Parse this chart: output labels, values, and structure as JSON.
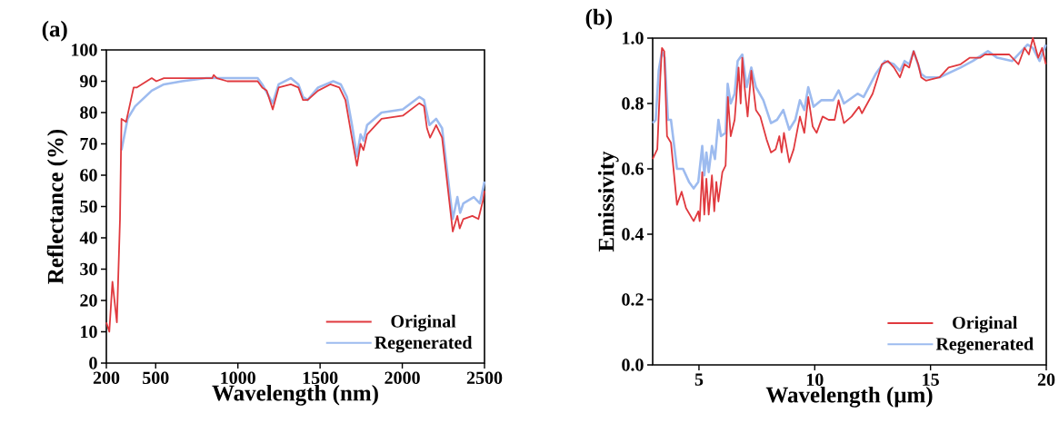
{
  "chart_data": [
    {
      "type": "line",
      "title": "(a)",
      "xlabel": "Wavelength (nm)",
      "ylabel": "Reflectance (%)",
      "xlim": [
        200,
        2500
      ],
      "ylim": [
        0,
        100
      ],
      "xticks": [
        200,
        500,
        1000,
        1500,
        2000,
        2500
      ],
      "yticks": [
        0,
        10,
        20,
        30,
        40,
        50,
        60,
        70,
        80,
        90,
        100
      ],
      "grid": false,
      "legend": "bottom right",
      "marker": "none",
      "line_style": "solid",
      "series": [
        {
          "name": "Original",
          "color": "#e0393e",
          "x": [
            200,
            218,
            237,
            264,
            283,
            292,
            320,
            366,
            384,
            476,
            504,
            550,
            660,
            844,
            853,
            872,
            936,
            973,
            1120,
            1148,
            1175,
            1212,
            1248,
            1322,
            1368,
            1396,
            1424,
            1488,
            1562,
            1617,
            1654,
            1690,
            1724,
            1746,
            1764,
            1786,
            1874,
            2003,
            2104,
            2132,
            2150,
            2169,
            2206,
            2242,
            2307,
            2335,
            2349,
            2371,
            2426,
            2463,
            2491,
            2500
          ],
          "values": [
            13,
            10,
            26,
            13,
            46,
            78,
            77,
            88,
            88,
            91,
            90,
            91,
            91,
            91,
            92,
            91,
            90,
            90,
            90,
            88,
            87,
            81,
            88,
            89,
            88,
            84,
            84,
            87,
            89,
            88,
            84,
            73,
            63,
            70,
            68,
            73,
            78,
            79,
            83,
            82,
            75,
            72,
            76,
            72,
            42,
            47,
            43,
            46,
            47,
            46,
            52,
            55
          ]
        },
        {
          "name": "Regenerated",
          "color": "#9dbbef",
          "x": [
            292,
            329,
            375,
            476,
            550,
            660,
            807,
            936,
            1120,
            1148,
            1212,
            1248,
            1322,
            1368,
            1396,
            1424,
            1488,
            1580,
            1626,
            1663,
            1694,
            1724,
            1746,
            1764,
            1786,
            1874,
            2003,
            2104,
            2132,
            2165,
            2206,
            2242,
            2307,
            2335,
            2352,
            2371,
            2435,
            2472,
            2500
          ],
          "values": [
            68,
            78,
            82,
            87,
            89,
            90,
            91,
            91,
            91,
            89,
            83,
            89,
            91,
            89,
            85,
            84,
            88,
            90,
            89,
            85,
            76,
            66,
            73,
            71,
            76,
            80,
            81,
            85,
            84,
            76,
            78,
            75,
            46,
            53,
            48,
            51,
            53,
            51,
            58
          ]
        }
      ]
    },
    {
      "type": "line",
      "title": "(b)",
      "xlabel": "Wavelength (μm)",
      "ylabel": "Emissivity",
      "xlim": [
        3,
        20
      ],
      "ylim": [
        0,
        1
      ],
      "xticks": [
        5,
        10,
        15,
        20
      ],
      "yticks": [
        {
          "value": 0,
          "label": "0.0"
        },
        0.2,
        0.4,
        0.6,
        0.8,
        {
          "value": 1,
          "label": "1.0"
        }
      ],
      "grid": false,
      "legend": "bottom right",
      "marker": "none",
      "line_style": "solid",
      "series": [
        {
          "name": "Original",
          "color": "#e0393e",
          "x": [
            3.0,
            3.2,
            3.33,
            3.4,
            3.5,
            3.62,
            3.79,
            4.05,
            4.25,
            4.44,
            4.77,
            4.97,
            5.03,
            5.14,
            5.23,
            5.32,
            5.42,
            5.56,
            5.66,
            5.75,
            5.84,
            6.01,
            6.15,
            6.25,
            6.37,
            6.54,
            6.71,
            6.8,
            6.87,
            6.97,
            7.1,
            7.26,
            7.46,
            7.65,
            7.92,
            8.11,
            8.31,
            8.47,
            8.57,
            8.67,
            8.9,
            9.09,
            9.36,
            9.55,
            9.72,
            9.91,
            10.08,
            10.34,
            10.6,
            10.86,
            11.03,
            11.26,
            11.59,
            11.91,
            12.04,
            12.5,
            12.9,
            13.16,
            13.42,
            13.68,
            13.88,
            14.08,
            14.27,
            14.47,
            14.6,
            14.8,
            15.39,
            15.78,
            16.3,
            16.7,
            17.15,
            17.35,
            17.88,
            18.4,
            18.8,
            19.06,
            19.25,
            19.42,
            19.65,
            19.82,
            19.98
          ],
          "values": [
            0.63,
            0.66,
            0.88,
            0.97,
            0.96,
            0.7,
            0.68,
            0.49,
            0.53,
            0.48,
            0.44,
            0.47,
            0.44,
            0.59,
            0.46,
            0.57,
            0.46,
            0.58,
            0.47,
            0.56,
            0.5,
            0.59,
            0.61,
            0.82,
            0.7,
            0.75,
            0.91,
            0.8,
            0.94,
            0.85,
            0.76,
            0.9,
            0.78,
            0.76,
            0.69,
            0.65,
            0.66,
            0.7,
            0.65,
            0.71,
            0.62,
            0.66,
            0.76,
            0.71,
            0.82,
            0.73,
            0.71,
            0.76,
            0.75,
            0.75,
            0.81,
            0.74,
            0.76,
            0.79,
            0.77,
            0.83,
            0.92,
            0.93,
            0.91,
            0.88,
            0.92,
            0.91,
            0.96,
            0.92,
            0.88,
            0.87,
            0.88,
            0.91,
            0.92,
            0.94,
            0.94,
            0.95,
            0.95,
            0.95,
            0.92,
            0.97,
            0.95,
            1.0,
            0.94,
            0.97,
            0.92
          ]
        },
        {
          "name": "Regenerated",
          "color": "#9dbbef",
          "x": [
            3.0,
            3.13,
            3.26,
            3.4,
            3.52,
            3.66,
            3.79,
            4.05,
            4.31,
            4.57,
            4.77,
            4.97,
            5.14,
            5.23,
            5.32,
            5.42,
            5.56,
            5.69,
            5.84,
            5.95,
            6.15,
            6.24,
            6.37,
            6.54,
            6.67,
            6.87,
            7.06,
            7.26,
            7.46,
            7.78,
            8.11,
            8.37,
            8.64,
            8.9,
            9.16,
            9.36,
            9.55,
            9.72,
            9.95,
            10.28,
            10.8,
            11.03,
            11.26,
            11.85,
            12.11,
            12.63,
            13.03,
            13.42,
            13.68,
            13.88,
            14.08,
            14.27,
            14.6,
            14.8,
            15.39,
            16.3,
            16.83,
            17.48,
            17.88,
            18.53,
            19.19,
            19.42,
            19.71,
            19.98
          ],
          "values": [
            0.74,
            0.75,
            0.9,
            0.96,
            0.94,
            0.75,
            0.75,
            0.6,
            0.6,
            0.56,
            0.54,
            0.56,
            0.67,
            0.58,
            0.65,
            0.59,
            0.67,
            0.63,
            0.75,
            0.7,
            0.71,
            0.86,
            0.8,
            0.83,
            0.93,
            0.95,
            0.85,
            0.91,
            0.85,
            0.81,
            0.74,
            0.75,
            0.78,
            0.72,
            0.75,
            0.81,
            0.78,
            0.85,
            0.79,
            0.81,
            0.81,
            0.84,
            0.8,
            0.83,
            0.82,
            0.89,
            0.93,
            0.92,
            0.9,
            0.93,
            0.92,
            0.96,
            0.89,
            0.88,
            0.88,
            0.91,
            0.93,
            0.96,
            0.94,
            0.93,
            0.98,
            0.97,
            0.93,
            0.98
          ]
        }
      ]
    }
  ]
}
